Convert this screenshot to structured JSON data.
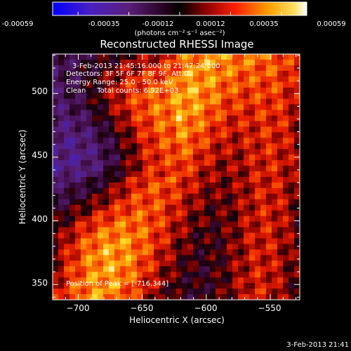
{
  "colorbar": {
    "tick_labels": [
      "-0.00059",
      "-0.00035",
      "-0.00012",
      "0.00012",
      "0.00035",
      "0.00059"
    ],
    "units_label": "(photons cm⁻² s⁻¹ asec⁻²)"
  },
  "chart_data": {
    "type": "heatmap",
    "title": "Reconstructed RHESSI Image",
    "xlabel": "Heliocentric X (arcsec)",
    "ylabel": "Heliocentric Y (arcsec)",
    "xlim": [
      -720,
      -527
    ],
    "ylim": [
      338,
      531
    ],
    "x_ticks": [
      -700,
      -650,
      -600,
      -550
    ],
    "x_tick_labels": [
      "−700",
      "−650",
      "−600",
      "−550"
    ],
    "y_ticks": [
      350,
      400,
      450,
      500
    ],
    "y_tick_labels": [
      "350",
      "400",
      "450",
      "500"
    ],
    "colorscale": {
      "min": -0.00059,
      "max": 0.00059,
      "stops": [
        "#0000ff",
        "#5a1fb0",
        "#6a2a8a",
        "#000000",
        "#7a0000",
        "#e01a00",
        "#ff7a00",
        "#ffd000",
        "#ffffff"
      ]
    },
    "annotations": {
      "time_range": "3-Feb-2013 21:45:16.000 to 21:47:24.000",
      "detectors": "Detectors: 3F 5F 6F 7F 8F 9F, Att 0",
      "energy": "Energy Range: 25.0 - 50.0 keV",
      "clean": "Clean     Total counts: 6.92E+03",
      "peak": "Position of Peak = [-716,344]"
    }
  },
  "footer_timestamp": "3-Feb-2013 21:41"
}
